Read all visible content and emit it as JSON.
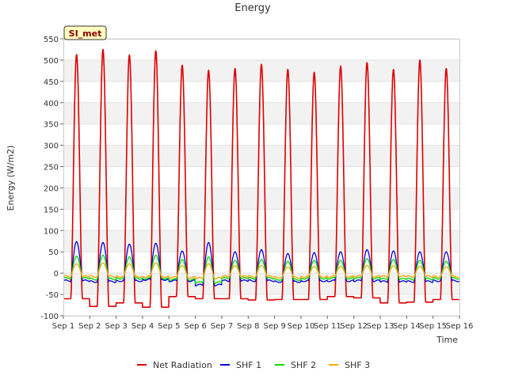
{
  "chart_data": {
    "type": "line",
    "title": "Energy",
    "xlabel": "Time",
    "ylabel": "Energy (W/m2)",
    "site_badge": "SI_met",
    "ylim": [
      -100,
      550
    ],
    "yticks": [
      -100,
      -50,
      0,
      50,
      100,
      150,
      200,
      250,
      300,
      350,
      400,
      450,
      500,
      550
    ],
    "ytick_labels": [
      "-100",
      "-50",
      "0",
      "50",
      "100",
      "150",
      "200",
      "250",
      "300",
      "350",
      "400",
      "450",
      "500",
      "550"
    ],
    "xlim": [
      1,
      16
    ],
    "xticks": [
      1,
      2,
      3,
      4,
      5,
      6,
      7,
      8,
      9,
      10,
      11,
      12,
      13,
      14,
      15,
      16
    ],
    "xtick_labels": [
      "Sep 1",
      "Sep 2",
      "Sep 3",
      "Sep 4",
      "Sep 5",
      "Sep 6",
      "Sep 7",
      "Sep 8",
      "Sep 9",
      "Sep 10",
      "Sep 11",
      "Sep 12",
      "Sep 13",
      "Sep 14",
      "Sep 15",
      "Sep 16"
    ],
    "grid": "horizontal bands",
    "legend": "bottom-center",
    "series": [
      {
        "name": "Net Radiation",
        "color": "#dd0000",
        "days": [
          1,
          2,
          3,
          4,
          5,
          6,
          7,
          8,
          9,
          10,
          11,
          12,
          13,
          14,
          15
        ],
        "daily_peak": [
          513,
          525,
          512,
          522,
          488,
          476,
          480,
          490,
          478,
          471,
          486,
          494,
          478,
          500,
          480
        ],
        "night_min": [
          -60,
          -78,
          -70,
          -80,
          -55,
          -60,
          -60,
          -63,
          -62,
          -62,
          -55,
          -58,
          -70,
          -68,
          -62
        ]
      },
      {
        "name": "SHF 1",
        "color": "#0000dd",
        "days": [
          1,
          2,
          3,
          4,
          5,
          6,
          7,
          8,
          9,
          10,
          11,
          12,
          13,
          14,
          15
        ],
        "daily_peak": [
          74,
          72,
          68,
          70,
          52,
          72,
          50,
          55,
          46,
          48,
          50,
          55,
          52,
          50,
          50
        ],
        "night_min": [
          -18,
          -20,
          -18,
          -15,
          -18,
          -28,
          -18,
          -18,
          -20,
          -18,
          -18,
          -18,
          -20,
          -20,
          -18
        ]
      },
      {
        "name": "SHF 2",
        "color": "#00dd00",
        "days": [
          1,
          2,
          3,
          4,
          5,
          6,
          7,
          8,
          9,
          10,
          11,
          12,
          13,
          14,
          15
        ],
        "daily_peak": [
          40,
          42,
          38,
          42,
          32,
          38,
          30,
          32,
          28,
          30,
          30,
          34,
          32,
          30,
          28
        ],
        "night_min": [
          -12,
          -14,
          -12,
          -12,
          -15,
          -22,
          -12,
          -12,
          -15,
          -12,
          -12,
          -12,
          -14,
          -14,
          -12
        ]
      },
      {
        "name": "SHF 3",
        "color": "#ffa500",
        "days": [
          1,
          2,
          3,
          4,
          5,
          6,
          7,
          8,
          9,
          10,
          11,
          12,
          13,
          14,
          15
        ],
        "daily_peak": [
          22,
          24,
          22,
          24,
          18,
          22,
          18,
          18,
          15,
          16,
          16,
          18,
          17,
          16,
          15
        ],
        "night_min": [
          -8,
          -8,
          -8,
          -8,
          -10,
          -12,
          -8,
          -8,
          -10,
          -8,
          -8,
          -8,
          -8,
          -8,
          -8
        ]
      }
    ]
  }
}
